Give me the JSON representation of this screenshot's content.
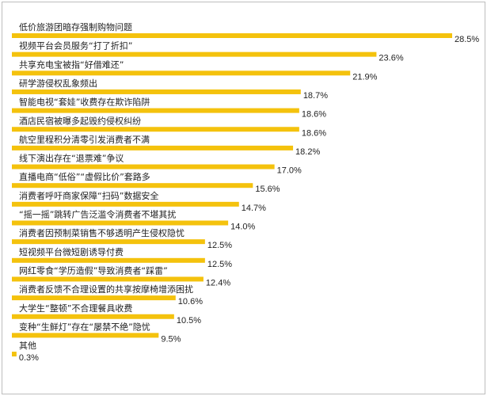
{
  "chart_data": {
    "type": "bar",
    "orientation": "horizontal",
    "title": "",
    "xlabel": "",
    "ylabel": "",
    "xlim": [
      0,
      28.5
    ],
    "grid": false,
    "legend": "none",
    "bar_color": "#F4C20D",
    "value_suffix": "%",
    "categories": [
      "低价旅游团暗存强制购物问题",
      "视频平台会员服务“打了折扣”",
      "共享充电宝被指“好借难还”",
      "研学游侵权乱象频出",
      "智能电视“套娃”收费存在欺诈陷阱",
      "酒店民宿被曝多起毁约侵权纠纷",
      "航空里程积分清零引发消费者不满",
      "线下演出存在“退票难”争议",
      "直播电商“低俗”“虚假比价”套路多",
      "消费者呼吁商家保障“扫码”数据安全",
      "“摇一摇”跳转广告泛滥令消费者不堪其扰",
      "消费者因预制菜销售不够透明产生侵权隐忧",
      "短视频平台微短剧诱导付费",
      "网红零食“学历造假”导致消费者“踩雷”",
      "消费者反馈不合理设置的共享按摩椅增添困扰",
      "大学生“整顿”不合理餐具收费",
      "变种“生鲜灯”存在“屡禁不绝”隐忧",
      "其他"
    ],
    "values": [
      28.5,
      23.6,
      21.9,
      18.7,
      18.6,
      18.6,
      18.2,
      17.0,
      15.6,
      14.7,
      14.0,
      12.5,
      12.5,
      12.4,
      10.6,
      10.5,
      9.5,
      0.3
    ],
    "value_labels": [
      "28.5%",
      "23.6%",
      "21.9%",
      "18.7%",
      "18.6%",
      "18.6%",
      "18.2%",
      "17.0%",
      "15.6%",
      "14.7%",
      "14.0%",
      "12.5%",
      "12.5%",
      "12.4%",
      "10.6%",
      "10.5%",
      "9.5%",
      "0.3%"
    ]
  }
}
